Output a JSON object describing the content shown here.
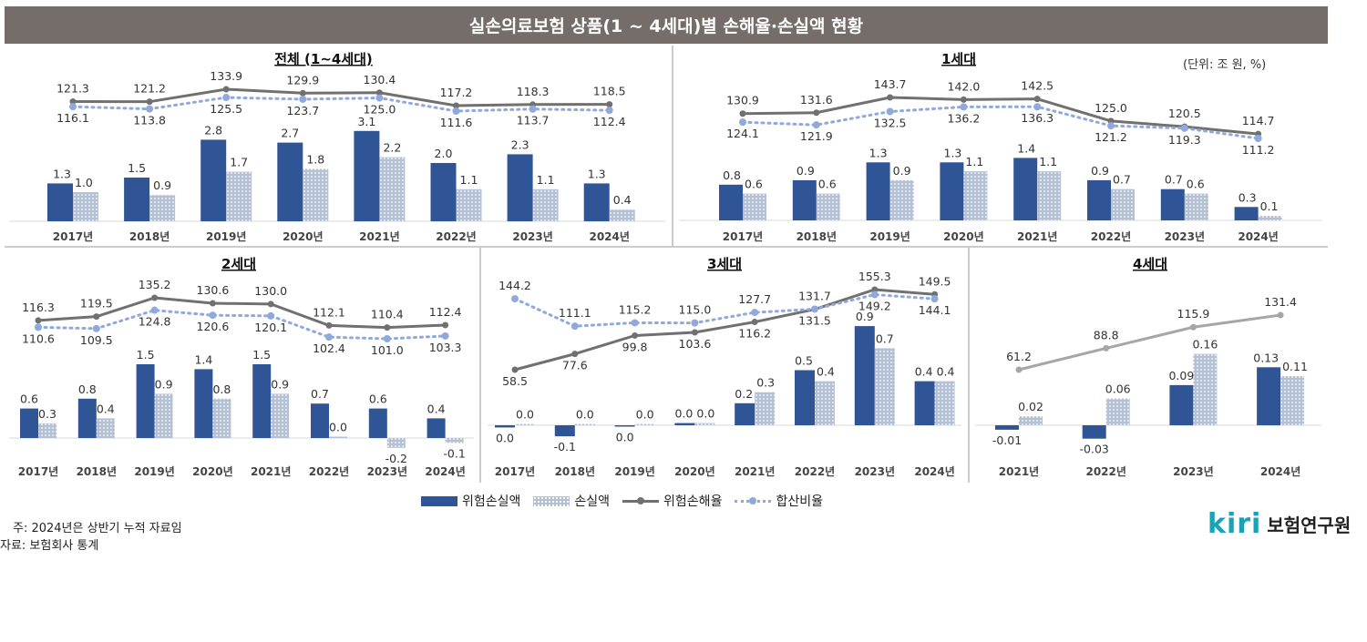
{
  "header": {
    "title": "실손의료보험 상품(1 ~ 4세대)별 손해율·손실액 현황",
    "unit": "(단위: 조 원, %)"
  },
  "legend": {
    "risk_loss": "위험손실액",
    "loss": "손실액",
    "risk_loss_ratio": "위험손해율",
    "combined_ratio": "합산비율"
  },
  "notes": {
    "note1": "주: 2024년은 상반기 누적 자료임",
    "source": "자료: 보험회사 통계"
  },
  "logo": {
    "mark": "kiri",
    "name": "보험연구원"
  },
  "colors": {
    "risk_loss": "#2f5597",
    "loss": "#b4c0d4",
    "risk_loss_ratio": "#707070",
    "combined_ratio": "#8fa9dc",
    "title_bg": "#756d6a"
  },
  "chart_data": [
    {
      "type": "bar+line",
      "title": "전체 (1~4세대)",
      "categories": [
        "2017년",
        "2018년",
        "2019년",
        "2020년",
        "2021년",
        "2022년",
        "2023년",
        "2024년"
      ],
      "series": [
        {
          "name": "위험손실액",
          "type": "bar",
          "values": [
            1.3,
            1.5,
            2.8,
            2.7,
            3.1,
            2.0,
            2.3,
            1.3
          ],
          "labels": [
            "1.3",
            "1.5",
            "2.8",
            "2.7",
            "3.1",
            "2.0",
            "2.3",
            "1.3"
          ]
        },
        {
          "name": "손실액",
          "type": "bar",
          "values": [
            1.0,
            0.9,
            1.7,
            1.8,
            2.2,
            1.1,
            1.1,
            0.4
          ],
          "labels": [
            "1.0",
            "0.9",
            "1.7",
            "1.8",
            "2.2",
            "1.1",
            "1.1",
            "0.4"
          ]
        },
        {
          "name": "위험손해율",
          "type": "line",
          "values": [
            121.3,
            121.2,
            133.9,
            129.9,
            130.4,
            117.2,
            118.3,
            118.5
          ],
          "labels": [
            "121.3",
            "121.2",
            "133.9",
            "129.9",
            "130.4",
            "117.2",
            "118.3",
            "118.5"
          ]
        },
        {
          "name": "합산비율",
          "type": "line",
          "values": [
            116.1,
            113.8,
            125.5,
            123.7,
            125.0,
            111.6,
            113.7,
            112.4
          ],
          "labels": [
            "116.1",
            "113.8",
            "125.5",
            "123.7",
            "125.0",
            "111.6",
            "113.7",
            "112.4"
          ]
        }
      ]
    },
    {
      "type": "bar+line",
      "title": "1세대",
      "categories": [
        "2017년",
        "2018년",
        "2019년",
        "2020년",
        "2021년",
        "2022년",
        "2023년",
        "2024년"
      ],
      "series": [
        {
          "name": "위험손실액",
          "type": "bar",
          "values": [
            0.8,
            0.9,
            1.3,
            1.3,
            1.4,
            0.9,
            0.7,
            0.3
          ],
          "labels": [
            "0.8",
            "0.9",
            "1.3",
            "1.3",
            "1.4",
            "0.9",
            "0.7",
            "0.3"
          ]
        },
        {
          "name": "손실액",
          "type": "bar",
          "values": [
            0.6,
            0.6,
            0.9,
            1.1,
            1.1,
            0.7,
            0.6,
            0.1
          ],
          "labels": [
            "0.6",
            "0.6",
            "0.9",
            "1.1",
            "1.1",
            "0.7",
            "0.6",
            "0.1"
          ]
        },
        {
          "name": "위험손해율",
          "type": "line",
          "values": [
            130.9,
            131.6,
            143.7,
            142.0,
            142.5,
            125.0,
            120.5,
            114.7
          ],
          "labels": [
            "130.9",
            "131.6",
            "143.7",
            "142.0",
            "142.5",
            "125.0",
            "120.5",
            "114.7"
          ]
        },
        {
          "name": "합산비율",
          "type": "line",
          "values": [
            124.1,
            121.9,
            132.5,
            136.2,
            136.3,
            121.2,
            119.3,
            111.2
          ],
          "labels": [
            "124.1",
            "121.9",
            "132.5",
            "136.2",
            "136.3",
            "121.2",
            "119.3",
            "111.2"
          ]
        }
      ]
    },
    {
      "type": "bar+line",
      "title": "2세대",
      "categories": [
        "2017년",
        "2018년",
        "2019년",
        "2020년",
        "2021년",
        "2022년",
        "2023년",
        "2024년"
      ],
      "series": [
        {
          "name": "위험손실액",
          "type": "bar",
          "values": [
            0.6,
            0.8,
            1.5,
            1.4,
            1.5,
            0.7,
            0.6,
            0.4
          ],
          "labels": [
            "0.6",
            "0.8",
            "1.5",
            "1.4",
            "1.5",
            "0.7",
            "0.6",
            "0.4"
          ]
        },
        {
          "name": "손실액",
          "type": "bar",
          "values": [
            0.3,
            0.4,
            0.9,
            0.8,
            0.9,
            0.0,
            -0.2,
            -0.1
          ],
          "labels": [
            "0.3",
            "0.4",
            "0.9",
            "0.8",
            "0.9",
            "0.0",
            "-0.2",
            "-0.1"
          ]
        },
        {
          "name": "위험손해율",
          "type": "line",
          "values": [
            116.3,
            119.5,
            135.2,
            130.6,
            130.0,
            112.1,
            110.4,
            112.4
          ],
          "labels": [
            "116.3",
            "119.5",
            "135.2",
            "130.6",
            "130.0",
            "112.1",
            "110.4",
            "112.4"
          ]
        },
        {
          "name": "합산비율",
          "type": "line",
          "values": [
            110.6,
            109.5,
            124.8,
            120.6,
            120.1,
            102.4,
            101.0,
            103.3
          ],
          "labels": [
            "110.6",
            "109.5",
            "124.8",
            "120.6",
            "120.1",
            "102.4",
            "101.0",
            "103.3"
          ]
        }
      ]
    },
    {
      "type": "bar+line",
      "title": "3세대",
      "categories": [
        "2017년",
        "2018년",
        "2019년",
        "2020년",
        "2021년",
        "2022년",
        "2023년",
        "2024년"
      ],
      "series": [
        {
          "name": "위험손실액",
          "type": "bar",
          "values": [
            -0.02,
            -0.1,
            -0.01,
            0.02,
            0.2,
            0.5,
            0.9,
            0.4
          ],
          "labels": [
            "0.0",
            "-0.1",
            "0.0",
            "0.0",
            "0.2",
            "0.5",
            "0.9",
            "0.4"
          ]
        },
        {
          "name": "손실액",
          "type": "bar",
          "values": [
            0.01,
            0.0,
            0.01,
            0.02,
            0.3,
            0.4,
            0.7,
            0.4
          ],
          "labels": [
            "0.0",
            "0.0",
            "0.0",
            "0.0",
            "0.3",
            "0.4",
            "0.7",
            "0.4"
          ]
        },
        {
          "name": "위험손해율",
          "type": "line",
          "values": [
            58.5,
            77.6,
            99.8,
            103.6,
            116.2,
            131.5,
            155.3,
            149.5
          ],
          "labels": [
            "58.5",
            "77.6",
            "99.8",
            "103.6",
            "116.2",
            "131.5",
            "155.3",
            "149.5"
          ]
        },
        {
          "name": "합산비율",
          "type": "line",
          "values": [
            144.2,
            111.1,
            115.2,
            115.0,
            127.7,
            131.7,
            149.2,
            144.1
          ],
          "labels": [
            "144.2",
            "111.1",
            "115.2",
            "115.0",
            "127.7",
            "131.7",
            "149.2",
            "144.1"
          ]
        }
      ]
    },
    {
      "type": "bar+line",
      "title": "4세대",
      "categories": [
        "2021년",
        "2022년",
        "2023년",
        "2024년"
      ],
      "series": [
        {
          "name": "위험손실액",
          "type": "bar",
          "values": [
            -0.01,
            -0.03,
            0.09,
            0.13
          ],
          "labels": [
            "-0.01",
            "-0.03",
            "0.09",
            "0.13"
          ]
        },
        {
          "name": "손실액",
          "type": "bar",
          "values": [
            0.02,
            0.06,
            0.16,
            0.11
          ],
          "labels": [
            "0.02",
            "0.06",
            "0.16",
            "0.11"
          ]
        },
        {
          "name": "위험손해율",
          "type": "line",
          "values": [
            61.2,
            88.8,
            115.9,
            131.4
          ],
          "labels": [
            "61.2",
            "88.8",
            "115.9",
            "131.4"
          ]
        }
      ]
    }
  ]
}
